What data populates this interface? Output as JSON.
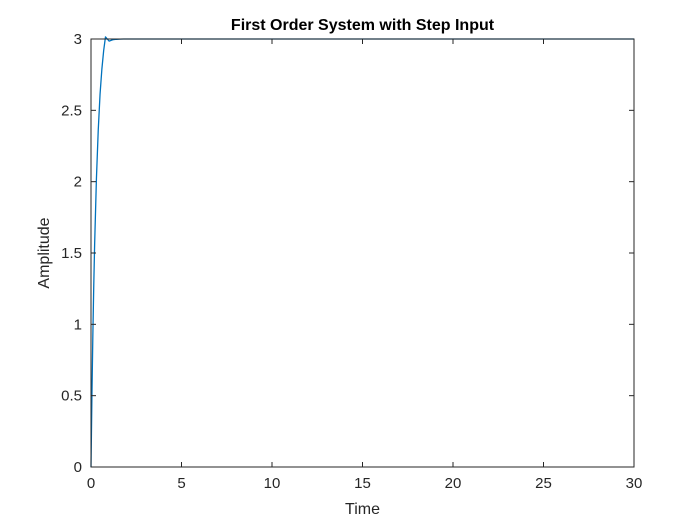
{
  "chart_data": {
    "type": "line",
    "title": "First Order System with Step Input",
    "xlabel": "Time",
    "ylabel": "Amplitude",
    "xlim": [
      0,
      30
    ],
    "ylim": [
      0,
      3
    ],
    "xticks": [
      "0",
      "5",
      "10",
      "15",
      "20",
      "25",
      "30"
    ],
    "yticks": [
      "0",
      "0.5",
      "1",
      "1.5",
      "2",
      "2.5",
      "3"
    ],
    "grid": false,
    "legend": "none",
    "series": [
      {
        "color": "#0072BD",
        "x": [
          0,
          0.05,
          0.1,
          0.15,
          0.2,
          0.3,
          0.4,
          0.5,
          0.6,
          0.7,
          0.8,
          0.9,
          1.0,
          1.2,
          1.4,
          1.6,
          1.8,
          2.0,
          2.5,
          3.0,
          5,
          10,
          15,
          20,
          25,
          30
        ],
        "y": [
          0,
          0.49,
          0.906,
          1.259,
          1.556,
          2.022,
          2.361,
          2.613,
          2.788,
          2.919,
          3.015,
          3.0,
          2.985,
          2.995,
          2.998,
          2.999,
          3.0,
          3.0,
          3.0,
          3.0,
          3.0,
          3.0,
          3.0,
          3.0,
          3.0,
          3.0
        ]
      }
    ]
  }
}
